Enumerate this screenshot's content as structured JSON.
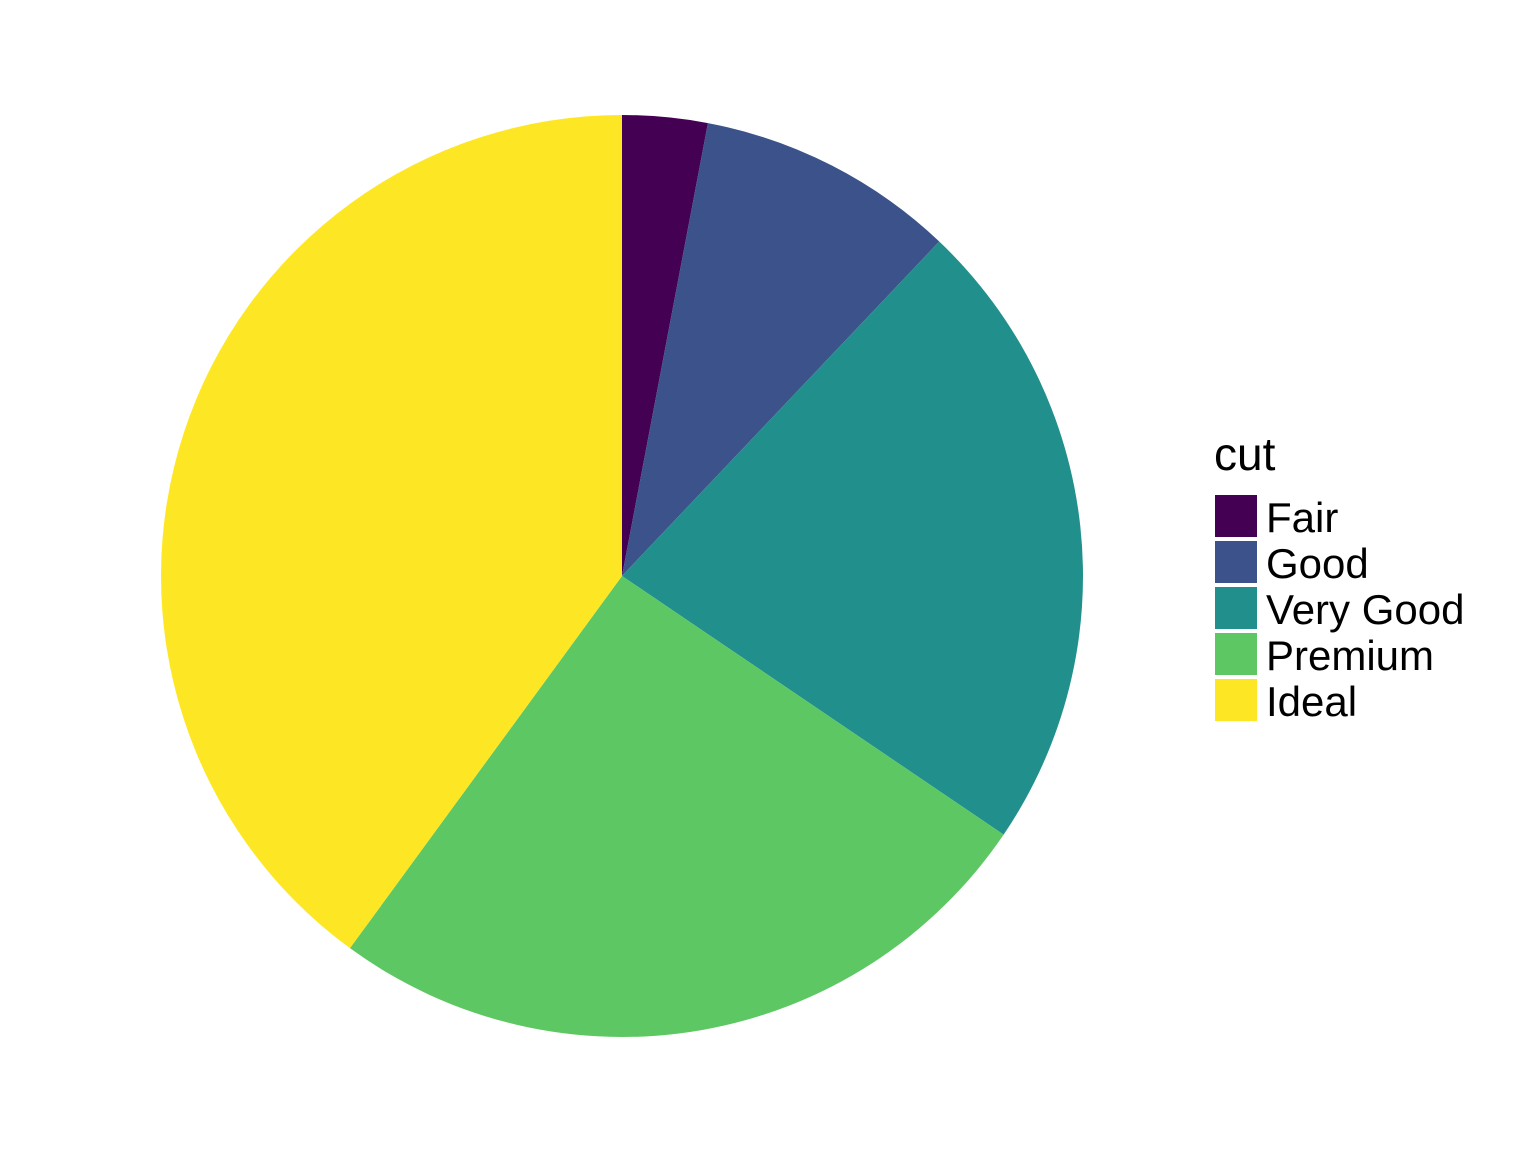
{
  "chart_data": {
    "type": "pie",
    "title": "",
    "legend_title": "cut",
    "legend_placement": "right",
    "start": "top",
    "direction": "clockwise",
    "categories": [
      "Fair",
      "Good",
      "Very Good",
      "Premium",
      "Ideal"
    ],
    "values": [
      1610,
      4906,
      12082,
      13791,
      21551
    ],
    "colors": [
      "#440154",
      "#3B528B",
      "#21908C",
      "#5DC863",
      "#FDE725"
    ]
  }
}
